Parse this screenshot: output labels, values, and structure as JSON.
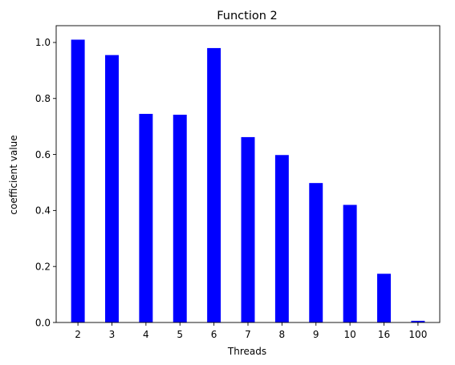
{
  "chart_data": {
    "type": "bar",
    "title": "Function 2",
    "xlabel": "Threads",
    "ylabel": "coefficient value",
    "categories": [
      "2",
      "3",
      "4",
      "5",
      "6",
      "7",
      "8",
      "9",
      "10",
      "16",
      "100"
    ],
    "values": [
      1.01,
      0.955,
      0.745,
      0.742,
      0.98,
      0.662,
      0.598,
      0.498,
      0.42,
      0.174,
      0.006
    ],
    "ylim": [
      0,
      1.06
    ],
    "yticks": [
      "0.0",
      "0.2",
      "0.4",
      "0.6",
      "0.8",
      "1.0"
    ],
    "bar_color": "#0000ff",
    "grid": false,
    "legend": null
  }
}
